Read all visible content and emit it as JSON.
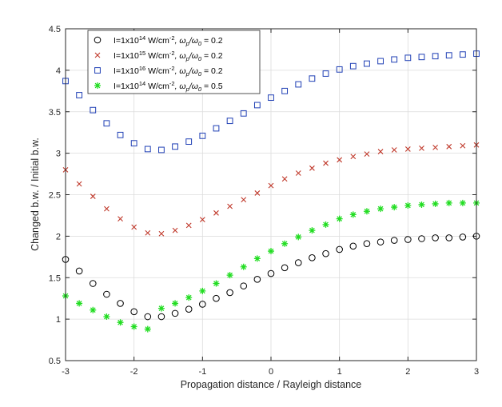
{
  "chart_data": {
    "type": "scatter",
    "xlabel": "Propagation distance / Rayleigh distance",
    "ylabel": "Changed b.w. / Initial b.w.",
    "xlim": [
      -3,
      3
    ],
    "ylim": [
      0.5,
      4.5
    ],
    "xticks": [
      -3,
      -2,
      -1,
      0,
      1,
      2,
      3
    ],
    "yticks": [
      0.5,
      1,
      1.5,
      2,
      2.5,
      3,
      3.5,
      4,
      4.5
    ],
    "xtick_labels": [
      "-3",
      "-2",
      "-1",
      "0",
      "1",
      "2",
      "3"
    ],
    "ytick_labels": [
      "0.5",
      "1",
      "1.5",
      "2",
      "2.5",
      "3",
      "3.5",
      "4",
      "4.5"
    ],
    "grid": true,
    "legend_position": "top-left",
    "x": [
      -3,
      -2.8,
      -2.6,
      -2.4,
      -2.2,
      -2,
      -1.8,
      -1.6,
      -1.4,
      -1.2,
      -1,
      -0.8,
      -0.6,
      -0.4,
      -0.2,
      0,
      0.2,
      0.4,
      0.6,
      0.8,
      1,
      1.2,
      1.4,
      1.6,
      1.8,
      2,
      2.2,
      2.4,
      2.6,
      2.8,
      3
    ],
    "series": [
      {
        "legend": {
          "base": "I=1x10",
          "exp": "14",
          "unit": " W/cm",
          "unit_exp": "-2",
          "mid": ", ω",
          "sub1": "p",
          "slash": "/ω",
          "sub2": "0",
          "tail": " = 0.2"
        },
        "marker": "circle",
        "color": "#000000",
        "values": [
          1.72,
          1.58,
          1.43,
          1.3,
          1.19,
          1.09,
          1.03,
          1.03,
          1.07,
          1.12,
          1.18,
          1.25,
          1.32,
          1.4,
          1.48,
          1.55,
          1.62,
          1.68,
          1.74,
          1.79,
          1.84,
          1.88,
          1.91,
          1.93,
          1.95,
          1.96,
          1.97,
          1.98,
          1.98,
          1.99,
          2.0
        ]
      },
      {
        "legend": {
          "base": "I=1x10",
          "exp": "15",
          "unit": " W/cm",
          "unit_exp": "-2",
          "mid": ", ω",
          "sub1": "p",
          "slash": "/ω",
          "sub2": "0",
          "tail": " = 0.2"
        },
        "marker": "x",
        "color": "#c0392b",
        "values": [
          2.8,
          2.63,
          2.48,
          2.33,
          2.21,
          2.11,
          2.04,
          2.03,
          2.07,
          2.13,
          2.2,
          2.28,
          2.36,
          2.44,
          2.52,
          2.61,
          2.69,
          2.76,
          2.82,
          2.88,
          2.92,
          2.96,
          2.99,
          3.02,
          3.04,
          3.05,
          3.06,
          3.07,
          3.08,
          3.09,
          3.1
        ]
      },
      {
        "legend": {
          "base": "I=1x10",
          "exp": "16",
          "unit": " W/cm",
          "unit_exp": "-2",
          "mid": ", ω",
          "sub1": "p",
          "slash": "/ω",
          "sub2": "0",
          "tail": " = 0.2"
        },
        "marker": "square",
        "color": "#1f3fb5",
        "values": [
          3.87,
          3.7,
          3.52,
          3.36,
          3.22,
          3.12,
          3.05,
          3.04,
          3.08,
          3.14,
          3.21,
          3.3,
          3.39,
          3.48,
          3.58,
          3.67,
          3.75,
          3.83,
          3.9,
          3.96,
          4.01,
          4.05,
          4.08,
          4.11,
          4.13,
          4.15,
          4.16,
          4.17,
          4.18,
          4.19,
          4.2
        ]
      },
      {
        "legend": {
          "base": "I=1x10",
          "exp": "14",
          "unit": " W/cm",
          "unit_exp": "-2",
          "mid": ", ω",
          "sub1": "p",
          "slash": "/ω",
          "sub2": "0",
          "tail": " = 0.5"
        },
        "marker": "star",
        "color": "#22dd22",
        "values": [
          1.28,
          1.19,
          1.11,
          1.03,
          0.96,
          0.91,
          0.88,
          1.13,
          1.19,
          1.26,
          1.34,
          1.43,
          1.53,
          1.63,
          1.73,
          1.82,
          1.91,
          1.99,
          2.07,
          2.14,
          2.21,
          2.26,
          2.3,
          2.33,
          2.35,
          2.37,
          2.38,
          2.39,
          2.4,
          2.4,
          2.4
        ]
      }
    ]
  }
}
